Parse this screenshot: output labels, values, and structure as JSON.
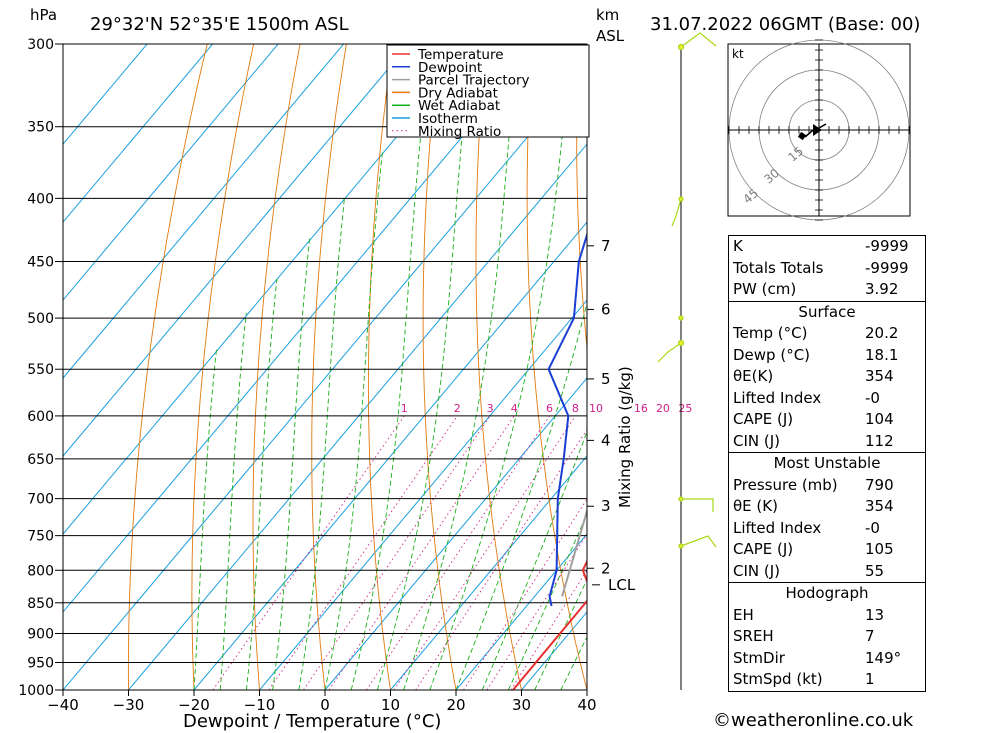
{
  "header": {
    "hpa_label": "hPa",
    "location": "29°32'N  52°35'E  1500m  ASL",
    "km_label": "km",
    "asl_label": "ASL",
    "datetime": "31.07.2022  06GMT  (Base: 00)"
  },
  "chart_data": {
    "type": "line",
    "title": "29°32'N  52°35'E  1500m  ASL",
    "xlabel": "Dewpoint / Temperature (°C)",
    "ylabel": "hPa",
    "xlim": [
      -40,
      40
    ],
    "ylim": [
      1000,
      300
    ],
    "x_ticks": [
      -40,
      -30,
      -20,
      -10,
      0,
      10,
      20,
      30,
      40
    ],
    "y_ticks": [
      300,
      350,
      400,
      450,
      500,
      550,
      600,
      650,
      700,
      750,
      800,
      850,
      900,
      950,
      1000
    ],
    "skew_per_decade": 57,
    "km_axis": [
      {
        "km": "7",
        "p": 437
      },
      {
        "km": "6",
        "p": 492
      },
      {
        "km": "5",
        "p": 560
      },
      {
        "km": "4",
        "p": 628
      },
      {
        "km": "3",
        "p": 710
      },
      {
        "km": "2",
        "p": 797
      }
    ],
    "lcl": {
      "label": "LCL",
      "p": 822
    },
    "mixing_ratio_axis_label": "Mixing Ratio (g/kg)",
    "mixing_ratio_labels": [
      "1",
      "2",
      "3",
      "4",
      "6",
      "8",
      "10",
      "16",
      "20",
      "25"
    ],
    "mixing_ratio_label_p": 590,
    "legend": {
      "placement": "top-right",
      "entries": [
        {
          "name": "Temperature",
          "color": "#e8312f"
        },
        {
          "name": "Dewpoint",
          "color": "#1a3ed1"
        },
        {
          "name": "Parcel Trajectory",
          "color": "#a0a0a0"
        },
        {
          "name": "Dry Adiabat",
          "color": "#e07a10"
        },
        {
          "name": "Wet Adiabat",
          "color": "#1ab01a"
        },
        {
          "name": "Isotherm",
          "color": "#1aa0e0"
        },
        {
          "name": "Mixing Ratio",
          "color": "#d0208a"
        }
      ]
    },
    "series": [
      {
        "name": "Temperature",
        "color": "#e8312f",
        "points": [
          [
            1000,
            28.7
          ],
          [
            840,
            28.6
          ],
          [
            820,
            26.5
          ],
          [
            800,
            24.0
          ],
          [
            760,
            22.5
          ],
          [
            700,
            19.0
          ],
          [
            650,
            14.3
          ],
          [
            600,
            10.0
          ],
          [
            550,
            5.7
          ],
          [
            500,
            0.1
          ],
          [
            470,
            -4.6
          ],
          [
            450,
            -9.7
          ],
          [
            420,
            -9.5
          ],
          [
            400,
            -13.0
          ],
          [
            380,
            -16.7
          ],
          [
            360,
            -20.5
          ]
        ]
      },
      {
        "name": "Dewpoint",
        "color": "#1a3ed1",
        "points": [
          [
            855,
            23.8
          ],
          [
            840,
            22.3
          ],
          [
            800,
            20.0
          ],
          [
            700,
            11.0
          ],
          [
            650,
            6.8
          ],
          [
            600,
            2.0
          ],
          [
            550,
            -7.0
          ],
          [
            500,
            -9.7
          ],
          [
            450,
            -16.2
          ],
          [
            420,
            -19.2
          ],
          [
            380,
            -26.2
          ],
          [
            360,
            -29.0
          ]
        ]
      },
      {
        "name": "Parcel Trajectory",
        "color": "#a0a0a0",
        "points": [
          [
            840,
            24.2
          ],
          [
            800,
            22.0
          ],
          [
            700,
            16.0
          ],
          [
            650,
            12.8
          ],
          [
            600,
            9.3
          ],
          [
            550,
            5.2
          ],
          [
            500,
            0.6
          ],
          [
            450,
            -5.8
          ],
          [
            400,
            -14.0
          ],
          [
            360,
            -21.5
          ]
        ]
      }
    ]
  },
  "hodograph": {
    "unit_label": "kt",
    "ring_labels": [
      "15",
      "30",
      "45"
    ]
  },
  "stats": {
    "top": [
      {
        "label": "K",
        "value": "-9999"
      },
      {
        "label": "Totals Totals",
        "value": "-9999"
      },
      {
        "label": "PW (cm)",
        "value": "3.92"
      }
    ],
    "surface": {
      "header": "Surface",
      "rows": [
        {
          "label": "Temp (°C)",
          "value": "20.2"
        },
        {
          "label": "Dewp (°C)",
          "value": "18.1"
        },
        {
          "label": "θE(K)",
          "value": "354"
        },
        {
          "label": "Lifted Index",
          "value": "-0"
        },
        {
          "label": "CAPE (J)",
          "value": "104"
        },
        {
          "label": "CIN (J)",
          "value": "112"
        }
      ]
    },
    "most_unstable": {
      "header": "Most Unstable",
      "rows": [
        {
          "label": "Pressure (mb)",
          "value": "790"
        },
        {
          "label": "θE (K)",
          "value": "354"
        },
        {
          "label": "Lifted Index",
          "value": "-0"
        },
        {
          "label": "CAPE (J)",
          "value": "105"
        },
        {
          "label": "CIN (J)",
          "value": "55"
        }
      ]
    },
    "hodograph": {
      "header": "Hodograph",
      "rows": [
        {
          "label": "EH",
          "value": "13"
        },
        {
          "label": "SREH",
          "value": "7"
        },
        {
          "label": "StmDir",
          "value": "149°"
        },
        {
          "label": "StmSpd (kt)",
          "value": "1"
        }
      ]
    }
  },
  "footer": "©weatheronline.co.uk",
  "colors": {
    "temperature": "#e8312f",
    "dewpoint": "#1a3ed1",
    "parcel": "#a0a0a0",
    "dry_adiabat": "#e07a10",
    "wet_adiabat": "#1ab01a",
    "isotherm": "#1aa0e0",
    "mixing_ratio": "#d0208a",
    "wind_barb": "#a8d818"
  }
}
